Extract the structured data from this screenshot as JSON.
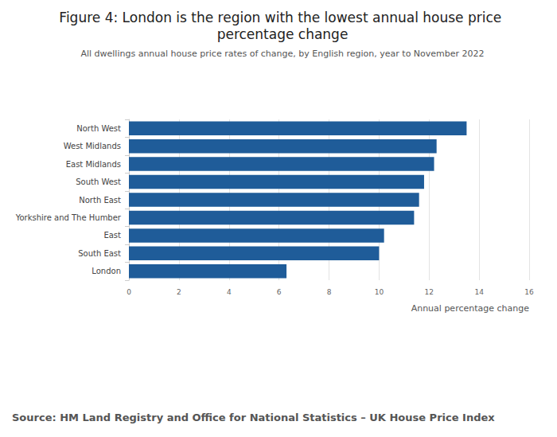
{
  "chart_data": {
    "type": "bar",
    "orientation": "horizontal",
    "title": "Figure 4: London is the region with the lowest annual house price percentage change",
    "subtitle": "All dwellings annual house price rates of change, by English region, year to November 2022",
    "x_label": "Annual percentage change",
    "source": "Source: HM Land Registry and Office for National Statistics – UK House Price Index",
    "categories": [
      "North West",
      "West Midlands",
      "East Midlands",
      "South West",
      "North East",
      "Yorkshire and The Humber",
      "East",
      "South East",
      "London"
    ],
    "values": [
      13.5,
      12.3,
      12.2,
      11.8,
      11.6,
      11.4,
      10.2,
      10.0,
      6.3
    ],
    "color": "#1f5c99",
    "xlim": [
      0,
      16
    ],
    "xticks": [
      0,
      2,
      4,
      6,
      8,
      10,
      12,
      14,
      16
    ],
    "grid": true
  }
}
